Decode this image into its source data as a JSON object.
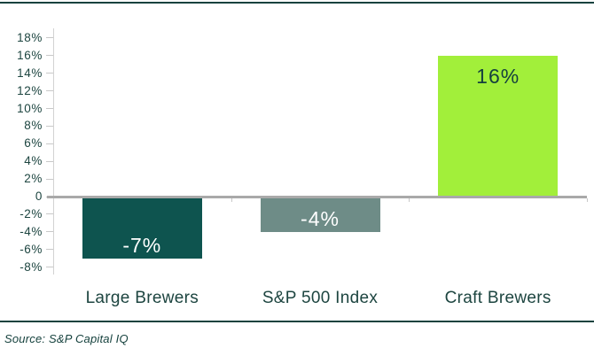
{
  "chart_data": {
    "type": "bar",
    "categories": [
      "Large Brewers",
      "S&P 500 Index",
      "Craft Brewers"
    ],
    "values": [
      -7,
      -4,
      16
    ],
    "value_labels": [
      "-7%",
      "-4%",
      "16%"
    ],
    "bar_colors": [
      "#0e544f",
      "#6e8c87",
      "#a2ef3a"
    ],
    "value_label_colors": [
      "#ffffff",
      "#ffffff",
      "#143f3e"
    ],
    "title": "",
    "xlabel": "",
    "ylabel": "",
    "ylim": [
      -8,
      18
    ],
    "ytick_step": 2,
    "ytick_labels": [
      "18%",
      "16%",
      "14%",
      "12%",
      "10%",
      "8%",
      "6%",
      "4%",
      "2%",
      "0",
      "-2%",
      "-4%",
      "-6%",
      "-8%"
    ],
    "grid": false,
    "legend": false,
    "zero_baseline": true
  },
  "source": {
    "label": "Source: S&P Capital IQ"
  },
  "colors": {
    "border": "#16423e",
    "text": "#1d4540",
    "axis_line": "#d2d2d2",
    "tick": "#c8c8c8",
    "zero_line": "#a9a9a9",
    "background": "#ffffff"
  }
}
